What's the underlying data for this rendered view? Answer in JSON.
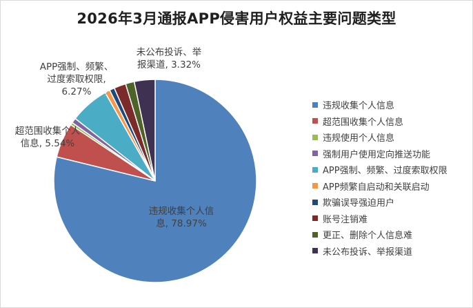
{
  "chart_data": {
    "type": "pie",
    "title": "2026年3月通报APP侵害用户权益主要问题类型",
    "legend_position": "right",
    "slices": [
      {
        "name": "违规收集个人信息",
        "value": 78.97,
        "color": "#4f81bd",
        "label_lines": [
          "违规收集个人信",
          "息, 78.97%"
        ]
      },
      {
        "name": "超范围收集个人信息",
        "value": 5.54,
        "color": "#c0504d",
        "label_lines": [
          "超范围收集个人",
          "信息, 5.54%"
        ]
      },
      {
        "name": "违规使用个人信息",
        "value": 0.4,
        "color": "#9bbb59",
        "label_lines": []
      },
      {
        "name": "强制用户使用定向推送功能",
        "value": 0.8,
        "color": "#8064a2",
        "label_lines": []
      },
      {
        "name": "APP强制、频繁、过度索取权限",
        "value": 6.27,
        "color": "#4bacc6",
        "label_lines": [
          "APP强制、频繁、",
          "过度索取权限,",
          "6.27%"
        ]
      },
      {
        "name": "APP频繁自启动和关联启动",
        "value": 0.8,
        "color": "#f79646",
        "label_lines": []
      },
      {
        "name": "欺骗误导强迫用户",
        "value": 0.8,
        "color": "#1f497d",
        "label_lines": []
      },
      {
        "name": "账号注销难",
        "value": 1.9,
        "color": "#7b2c2a",
        "label_lines": []
      },
      {
        "name": "更正、删除个人信息难",
        "value": 1.4,
        "color": "#4f6228",
        "label_lines": []
      },
      {
        "name": "未公布投诉、举报渠道",
        "value": 3.32,
        "color": "#3f3151",
        "label_lines": [
          "未公布投诉、举",
          "报渠道, 3.32%"
        ]
      }
    ]
  }
}
